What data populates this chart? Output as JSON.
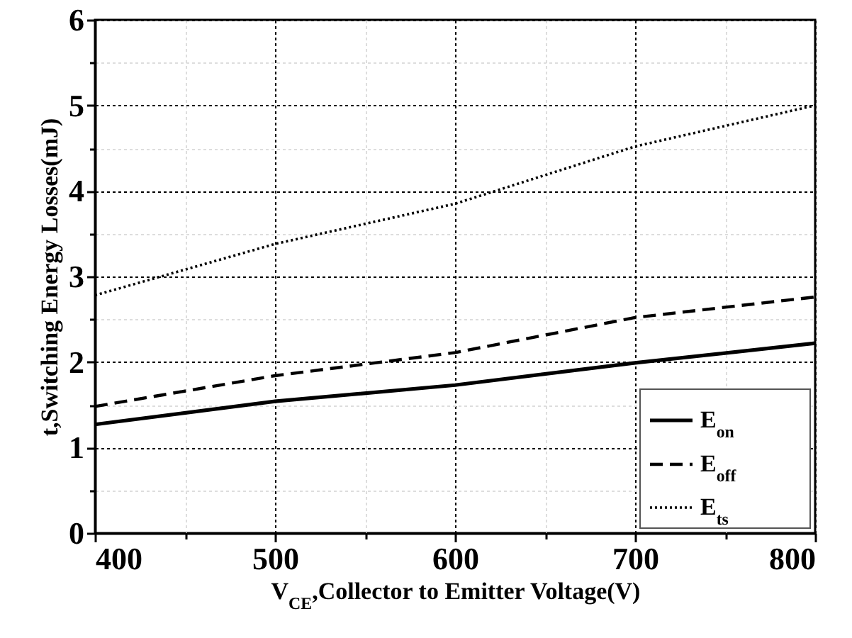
{
  "chart_data": {
    "type": "line",
    "xlabel": "V$_{CE}$,Collector to Emitter Voltage(V)",
    "ylabel": "t,Switching Energy Losses(mJ)",
    "x": [
      400,
      500,
      600,
      700,
      800
    ],
    "series": [
      {
        "name": "E$_{on}$",
        "color": "#000000",
        "line_style": "solid",
        "values": [
          1.27,
          1.54,
          1.73,
          1.99,
          2.22
        ]
      },
      {
        "name": "E$_{off}$",
        "color": "#000000",
        "line_style": "dashed",
        "values": [
          1.48,
          1.84,
          2.11,
          2.52,
          2.76
        ]
      },
      {
        "name": "E$_{ts}$",
        "color": "#000000",
        "line_style": "dotted",
        "values": [
          2.78,
          3.38,
          3.85,
          4.52,
          5.0
        ]
      }
    ],
    "xlim": [
      400,
      800
    ],
    "xticks": [
      400,
      {
        "value": 450,
        "label": null
      },
      500,
      {
        "value": 550,
        "label": null
      },
      600,
      {
        "value": 650,
        "label": null
      },
      700,
      {
        "value": 750,
        "label": null
      },
      800
    ],
    "ylim": [
      0,
      6
    ],
    "yticks": [
      0,
      {
        "value": 0.5,
        "label": null
      },
      1,
      {
        "value": 1.5,
        "label": null
      },
      2,
      {
        "value": 2.5,
        "label": null
      },
      3,
      {
        "value": 3.5,
        "label": null
      },
      4,
      {
        "value": 4.5,
        "label": null
      },
      5,
      {
        "value": 5.5,
        "label": null
      },
      6
    ],
    "grid": true,
    "legend": "bottom right",
    "marker": "none"
  }
}
